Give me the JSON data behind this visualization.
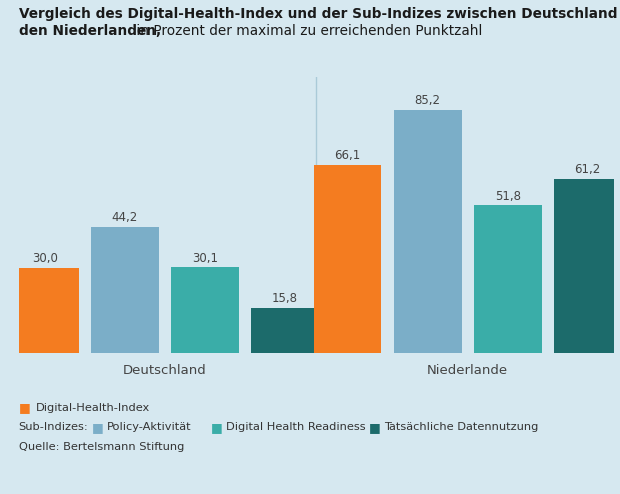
{
  "title_line1": "Vergleich des Digital-Health-Index und der Sub-Indizes zwischen Deutschland und",
  "title_line2_bold": "den Niederlanden,",
  "title_line2_normal": " in Prozent der maximal zu erreichenden Punktzahl",
  "groups": [
    "Deutschland",
    "Niederlande"
  ],
  "categories": [
    "Digital-Health-Index",
    "Policy-Aktivität",
    "Digital Health Readiness",
    "Tatsächliche Datennutzung"
  ],
  "values": {
    "Deutschland": [
      30.0,
      44.2,
      30.1,
      15.8
    ],
    "Niederlande": [
      66.1,
      85.2,
      51.8,
      61.2
    ]
  },
  "colors": [
    "#F47C20",
    "#7BAEC8",
    "#3AADA8",
    "#1C6B6B"
  ],
  "background_color": "#D6E8F0",
  "bar_width": 0.13,
  "group_centers": [
    0.3,
    0.88
  ],
  "ylim": [
    0,
    97
  ],
  "divider_color": "#AACAD8",
  "label_fontsize": 8.5,
  "axis_label_fontsize": 9.5,
  "source": "Quelle: Bertelsmann Stiftung"
}
